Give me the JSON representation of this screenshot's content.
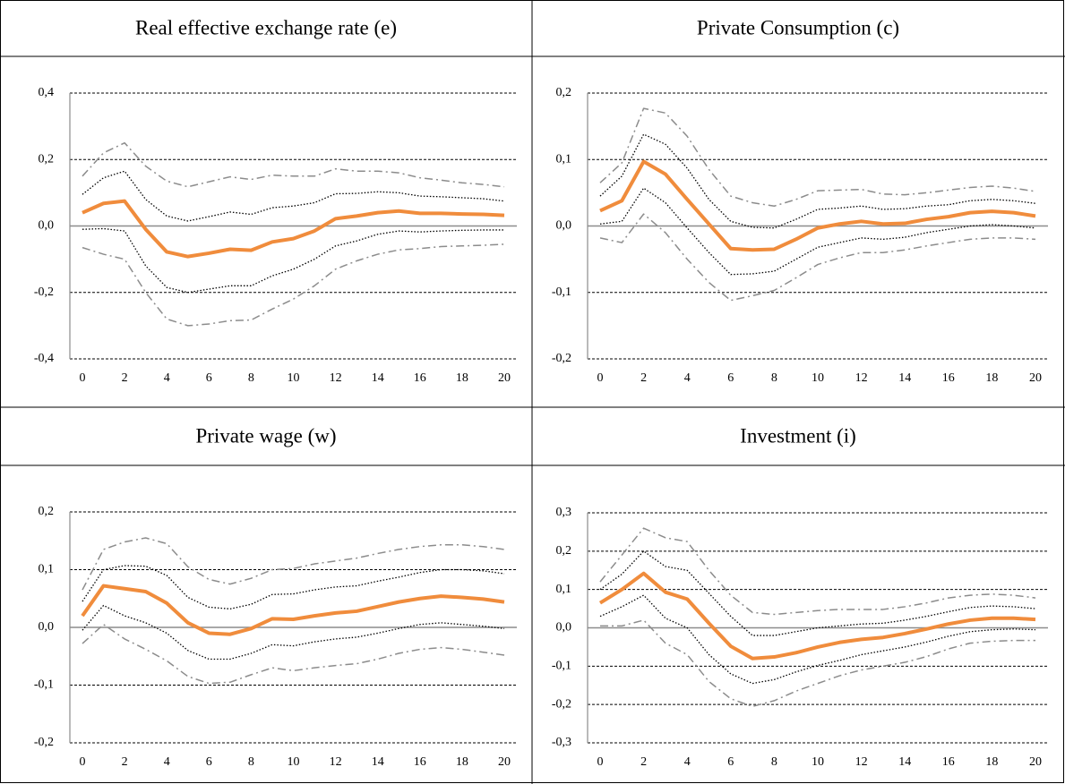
{
  "chart_data": [
    {
      "type": "line",
      "title": "Real effective exchange rate (e)",
      "x": [
        0,
        1,
        2,
        3,
        4,
        5,
        6,
        7,
        8,
        9,
        10,
        11,
        12,
        13,
        14,
        15,
        16,
        17,
        18,
        19,
        20
      ],
      "xlim": [
        0,
        20
      ],
      "xticks": [
        0,
        2,
        4,
        6,
        8,
        10,
        12,
        14,
        16,
        18,
        20
      ],
      "ylim": [
        -0.4,
        0.4
      ],
      "yticks": [
        {
          "value": -0.4,
          "label": "-0,4"
        },
        {
          "value": -0.2,
          "label": "-0,2"
        },
        {
          "value": 0,
          "label": "0,0"
        },
        {
          "value": 0.2,
          "label": "0,2"
        },
        {
          "value": 0.4,
          "label": "0,4"
        }
      ],
      "grid": true,
      "series": [
        {
          "color": "#8c8c8c",
          "style": "dashdot",
          "values": [
            0.15,
            0.22,
            0.25,
            0.18,
            0.135,
            0.118,
            0.133,
            0.148,
            0.14,
            0.153,
            0.15,
            0.15,
            0.172,
            0.165,
            0.165,
            0.16,
            0.145,
            0.138,
            0.13,
            0.125,
            0.118
          ]
        },
        {
          "color": "#8c8c8c",
          "style": "dashdot",
          "values": [
            -0.065,
            -0.085,
            -0.1,
            -0.2,
            -0.28,
            -0.3,
            -0.295,
            -0.285,
            -0.283,
            -0.25,
            -0.22,
            -0.18,
            -0.13,
            -0.105,
            -0.085,
            -0.072,
            -0.068,
            -0.062,
            -0.06,
            -0.058,
            -0.055
          ]
        },
        {
          "color": "#000000",
          "style": "dotted",
          "values": [
            0.095,
            0.145,
            0.165,
            0.08,
            0.03,
            0.015,
            0.028,
            0.042,
            0.035,
            0.055,
            0.06,
            0.07,
            0.097,
            0.098,
            0.103,
            0.1,
            0.09,
            0.088,
            0.085,
            0.082,
            0.075
          ]
        },
        {
          "color": "#000000",
          "style": "dotted",
          "values": [
            -0.01,
            -0.008,
            -0.015,
            -0.12,
            -0.185,
            -0.2,
            -0.19,
            -0.18,
            -0.18,
            -0.15,
            -0.13,
            -0.1,
            -0.06,
            -0.045,
            -0.025,
            -0.015,
            -0.018,
            -0.015,
            -0.013,
            -0.012,
            -0.012
          ]
        },
        {
          "color": "#f08c3c",
          "style": "solid",
          "values": [
            0.04,
            0.068,
            0.075,
            -0.01,
            -0.078,
            -0.092,
            -0.082,
            -0.07,
            -0.073,
            -0.048,
            -0.038,
            -0.015,
            0.022,
            0.03,
            0.04,
            0.045,
            0.038,
            0.038,
            0.036,
            0.035,
            0.032
          ]
        }
      ]
    },
    {
      "type": "line",
      "title": "Private Consumption (c)",
      "x": [
        0,
        1,
        2,
        3,
        4,
        5,
        6,
        7,
        8,
        9,
        10,
        11,
        12,
        13,
        14,
        15,
        16,
        17,
        18,
        19,
        20
      ],
      "xlim": [
        0,
        20
      ],
      "xticks": [
        0,
        2,
        4,
        6,
        8,
        10,
        12,
        14,
        16,
        18,
        20
      ],
      "ylim": [
        -0.2,
        0.2
      ],
      "yticks": [
        {
          "value": -0.2,
          "label": "-0,2"
        },
        {
          "value": -0.1,
          "label": "-0,1"
        },
        {
          "value": 0,
          "label": "0,0"
        },
        {
          "value": 0.1,
          "label": "0,1"
        },
        {
          "value": 0.2,
          "label": "0,2"
        }
      ],
      "grid": true,
      "series": [
        {
          "color": "#8c8c8c",
          "style": "dashdot",
          "values": [
            0.065,
            0.095,
            0.177,
            0.17,
            0.135,
            0.085,
            0.045,
            0.035,
            0.03,
            0.04,
            0.053,
            0.054,
            0.055,
            0.048,
            0.047,
            0.05,
            0.054,
            0.058,
            0.06,
            0.057,
            0.052
          ]
        },
        {
          "color": "#8c8c8c",
          "style": "dashdot",
          "values": [
            -0.018,
            -0.025,
            0.018,
            -0.01,
            -0.05,
            -0.085,
            -0.112,
            -0.105,
            -0.097,
            -0.078,
            -0.058,
            -0.048,
            -0.04,
            -0.04,
            -0.036,
            -0.03,
            -0.025,
            -0.02,
            -0.018,
            -0.018,
            -0.02
          ]
        },
        {
          "color": "#000000",
          "style": "dotted",
          "values": [
            0.045,
            0.075,
            0.138,
            0.123,
            0.087,
            0.04,
            0.007,
            -0.002,
            -0.003,
            0.01,
            0.025,
            0.027,
            0.03,
            0.025,
            0.026,
            0.03,
            0.032,
            0.038,
            0.04,
            0.038,
            0.034
          ]
        },
        {
          "color": "#000000",
          "style": "dotted",
          "values": [
            0.003,
            0.007,
            0.057,
            0.035,
            -0.003,
            -0.04,
            -0.073,
            -0.072,
            -0.068,
            -0.05,
            -0.032,
            -0.025,
            -0.018,
            -0.02,
            -0.017,
            -0.01,
            -0.005,
            0.0,
            0.002,
            0.0,
            -0.003
          ]
        },
        {
          "color": "#f08c3c",
          "style": "solid",
          "values": [
            0.023,
            0.038,
            0.097,
            0.078,
            0.04,
            0.003,
            -0.034,
            -0.036,
            -0.035,
            -0.02,
            -0.003,
            0.003,
            0.007,
            0.003,
            0.004,
            0.01,
            0.014,
            0.02,
            0.022,
            0.02,
            0.015
          ]
        }
      ]
    },
    {
      "type": "line",
      "title": "Private wage (w)",
      "x": [
        0,
        1,
        2,
        3,
        4,
        5,
        6,
        7,
        8,
        9,
        10,
        11,
        12,
        13,
        14,
        15,
        16,
        17,
        18,
        19,
        20
      ],
      "xlim": [
        0,
        20
      ],
      "xticks": [
        0,
        2,
        4,
        6,
        8,
        10,
        12,
        14,
        16,
        18,
        20
      ],
      "ylim": [
        -0.2,
        0.2
      ],
      "yticks": [
        {
          "value": -0.2,
          "label": "-0,2"
        },
        {
          "value": -0.1,
          "label": "-0,1"
        },
        {
          "value": 0,
          "label": "0,0"
        },
        {
          "value": 0.1,
          "label": "0,1"
        },
        {
          "value": 0.2,
          "label": "0,2"
        }
      ],
      "grid": true,
      "series": [
        {
          "color": "#8c8c8c",
          "style": "dashdot",
          "values": [
            0.065,
            0.135,
            0.148,
            0.155,
            0.145,
            0.105,
            0.083,
            0.075,
            0.085,
            0.1,
            0.102,
            0.11,
            0.115,
            0.12,
            0.128,
            0.135,
            0.14,
            0.143,
            0.143,
            0.14,
            0.135
          ]
        },
        {
          "color": "#8c8c8c",
          "style": "dashdot",
          "values": [
            -0.028,
            0.005,
            -0.02,
            -0.038,
            -0.058,
            -0.085,
            -0.097,
            -0.095,
            -0.082,
            -0.07,
            -0.075,
            -0.07,
            -0.066,
            -0.063,
            -0.055,
            -0.045,
            -0.038,
            -0.035,
            -0.038,
            -0.043,
            -0.048
          ]
        },
        {
          "color": "#000000",
          "style": "dotted",
          "values": [
            0.045,
            0.1,
            0.107,
            0.106,
            0.09,
            0.052,
            0.035,
            0.032,
            0.04,
            0.057,
            0.058,
            0.065,
            0.07,
            0.072,
            0.08,
            0.087,
            0.095,
            0.1,
            0.1,
            0.098,
            0.093
          ]
        },
        {
          "color": "#000000",
          "style": "dotted",
          "values": [
            -0.005,
            0.038,
            0.02,
            0.008,
            -0.01,
            -0.04,
            -0.055,
            -0.055,
            -0.045,
            -0.03,
            -0.032,
            -0.025,
            -0.02,
            -0.017,
            -0.01,
            -0.002,
            0.005,
            0.008,
            0.005,
            0.002,
            -0.002
          ]
        },
        {
          "color": "#f08c3c",
          "style": "solid",
          "values": [
            0.02,
            0.072,
            0.067,
            0.062,
            0.042,
            0.008,
            -0.01,
            -0.012,
            -0.002,
            0.015,
            0.014,
            0.02,
            0.025,
            0.028,
            0.036,
            0.044,
            0.05,
            0.054,
            0.052,
            0.049,
            0.044
          ]
        }
      ]
    },
    {
      "type": "line",
      "title": "Investment (i)",
      "x": [
        0,
        1,
        2,
        3,
        4,
        5,
        6,
        7,
        8,
        9,
        10,
        11,
        12,
        13,
        14,
        15,
        16,
        17,
        18,
        19,
        20
      ],
      "xlim": [
        0,
        20
      ],
      "xticks": [
        0,
        2,
        4,
        6,
        8,
        10,
        12,
        14,
        16,
        18,
        20
      ],
      "ylim": [
        -0.3,
        0.3
      ],
      "yticks": [
        {
          "value": -0.3,
          "label": "-0,3"
        },
        {
          "value": -0.2,
          "label": "-0,2"
        },
        {
          "value": -0.1,
          "label": "-0,1"
        },
        {
          "value": 0,
          "label": "0,0"
        },
        {
          "value": 0.1,
          "label": "0,1"
        },
        {
          "value": 0.2,
          "label": "0,2"
        },
        {
          "value": 0.3,
          "label": "0,3"
        }
      ],
      "grid": true,
      "series": [
        {
          "color": "#8c8c8c",
          "style": "dashdot",
          "values": [
            0.12,
            0.19,
            0.26,
            0.235,
            0.225,
            0.15,
            0.085,
            0.04,
            0.035,
            0.04,
            0.045,
            0.048,
            0.048,
            0.048,
            0.055,
            0.065,
            0.078,
            0.085,
            0.088,
            0.085,
            0.078
          ]
        },
        {
          "color": "#8c8c8c",
          "style": "dashdot",
          "values": [
            0.005,
            0.005,
            0.02,
            -0.04,
            -0.07,
            -0.14,
            -0.185,
            -0.205,
            -0.19,
            -0.165,
            -0.145,
            -0.125,
            -0.11,
            -0.1,
            -0.09,
            -0.075,
            -0.055,
            -0.04,
            -0.035,
            -0.033,
            -0.033
          ]
        },
        {
          "color": "#000000",
          "style": "dotted",
          "values": [
            0.1,
            0.14,
            0.2,
            0.16,
            0.15,
            0.09,
            0.03,
            -0.02,
            -0.02,
            -0.01,
            0.0,
            0.005,
            0.01,
            0.012,
            0.02,
            0.03,
            0.042,
            0.053,
            0.057,
            0.055,
            0.05
          ]
        },
        {
          "color": "#000000",
          "style": "dotted",
          "values": [
            0.03,
            0.055,
            0.085,
            0.025,
            0.0,
            -0.07,
            -0.12,
            -0.145,
            -0.135,
            -0.115,
            -0.098,
            -0.085,
            -0.07,
            -0.06,
            -0.05,
            -0.037,
            -0.022,
            -0.01,
            -0.005,
            -0.003,
            -0.005
          ]
        },
        {
          "color": "#f08c3c",
          "style": "solid",
          "values": [
            0.065,
            0.1,
            0.142,
            0.093,
            0.075,
            0.012,
            -0.048,
            -0.08,
            -0.076,
            -0.065,
            -0.05,
            -0.038,
            -0.03,
            -0.025,
            -0.015,
            -0.003,
            0.01,
            0.02,
            0.025,
            0.025,
            0.022
          ]
        }
      ]
    }
  ]
}
